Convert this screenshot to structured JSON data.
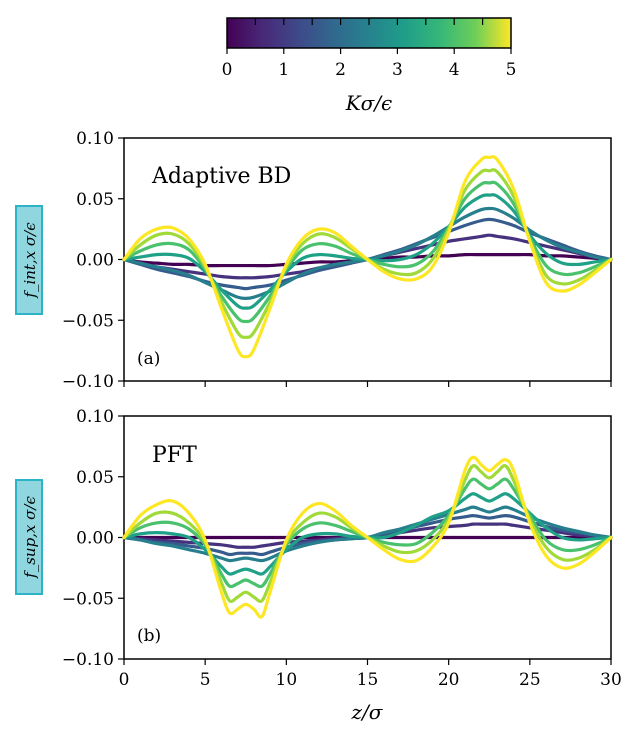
{
  "figure": {
    "colorbar": {
      "label": "Kσ/ϵ",
      "ticks": [
        "0",
        "1",
        "2",
        "3",
        "4",
        "5"
      ],
      "range": [
        0,
        5
      ],
      "colormap": "viridis"
    },
    "xlabel": "z/σ"
  },
  "chart_data": [
    {
      "type": "line",
      "panel_tag": "(a)",
      "title": "Adaptive BD",
      "ylabel": "f_int,x σ/ϵ",
      "xlim": [
        0,
        30
      ],
      "ylim": [
        -0.1,
        0.1
      ],
      "x_ticks": [
        "0",
        "5",
        "10",
        "15",
        "20",
        "25",
        "30"
      ],
      "y_ticks": [
        "−0.10",
        "−0.05",
        "0.00",
        "0.05",
        "0.10"
      ],
      "x": [
        0,
        1,
        2,
        3,
        4,
        5,
        6,
        7,
        7.5,
        8,
        9,
        10,
        11,
        12,
        13,
        14,
        15,
        16,
        17,
        18,
        19,
        20,
        21,
        22,
        22.5,
        23,
        24,
        25,
        26,
        27,
        28,
        29,
        30
      ],
      "series": [
        {
          "K": 0.5,
          "color": "#440154",
          "y": [
            0,
            -0.002,
            -0.003,
            -0.004,
            -0.004,
            -0.005,
            -0.005,
            -0.005,
            -0.005,
            -0.005,
            -0.005,
            -0.004,
            -0.003,
            -0.002,
            -0.002,
            -0.001,
            0,
            0.001,
            0.002,
            0.002,
            0.003,
            0.003,
            0.004,
            0.004,
            0.004,
            0.004,
            0.004,
            0.004,
            0.003,
            0.003,
            0.002,
            0.001,
            0
          ]
        },
        {
          "K": 1.0,
          "color": "#46327e",
          "y": [
            0,
            -0.003,
            -0.006,
            -0.008,
            -0.01,
            -0.012,
            -0.014,
            -0.015,
            -0.015,
            -0.015,
            -0.014,
            -0.012,
            -0.01,
            -0.007,
            -0.005,
            -0.002,
            0,
            0.003,
            0.006,
            0.009,
            0.012,
            0.015,
            0.017,
            0.019,
            0.02,
            0.019,
            0.017,
            0.014,
            0.011,
            0.008,
            0.005,
            0.002,
            0
          ]
        },
        {
          "K": 1.5,
          "color": "#365c8d",
          "y": [
            0,
            -0.004,
            -0.008,
            -0.011,
            -0.014,
            -0.018,
            -0.021,
            -0.023,
            -0.024,
            -0.023,
            -0.021,
            -0.017,
            -0.013,
            -0.009,
            -0.006,
            -0.003,
            0,
            0.004,
            0.008,
            0.013,
            0.018,
            0.023,
            0.028,
            0.032,
            0.033,
            0.032,
            0.028,
            0.022,
            0.017,
            0.012,
            0.007,
            0.003,
            0
          ]
        },
        {
          "K": 2.0,
          "color": "#277f8e",
          "y": [
            0,
            -0.003,
            -0.006,
            -0.009,
            -0.013,
            -0.019,
            -0.025,
            -0.031,
            -0.032,
            -0.031,
            -0.026,
            -0.019,
            -0.012,
            -0.007,
            -0.004,
            -0.002,
            0,
            0.003,
            0.007,
            0.012,
            0.019,
            0.027,
            0.035,
            0.041,
            0.042,
            0.041,
            0.034,
            0.024,
            0.016,
            0.01,
            0.006,
            0.002,
            0
          ]
        },
        {
          "K": 2.5,
          "color": "#1fa187",
          "y": [
            0,
            0.002,
            0.004,
            0.004,
            0.001,
            -0.01,
            -0.025,
            -0.038,
            -0.04,
            -0.038,
            -0.025,
            -0.01,
            0.001,
            0.004,
            0.003,
            0.001,
            0,
            -0.001,
            0.0,
            0.004,
            0.013,
            0.027,
            0.043,
            0.052,
            0.053,
            0.052,
            0.04,
            0.02,
            0.005,
            -0.003,
            -0.004,
            -0.002,
            0
          ]
        },
        {
          "K": 3.0,
          "color": "#4ac16d",
          "y": [
            0,
            0.007,
            0.012,
            0.013,
            0.008,
            -0.008,
            -0.03,
            -0.048,
            -0.051,
            -0.048,
            -0.03,
            -0.008,
            0.008,
            0.013,
            0.011,
            0.005,
            0,
            -0.004,
            -0.006,
            -0.004,
            0.006,
            0.026,
            0.05,
            0.062,
            0.063,
            0.062,
            0.046,
            0.018,
            -0.005,
            -0.012,
            -0.011,
            -0.006,
            0
          ]
        },
        {
          "K": 3.5,
          "color": "#a0da39",
          "y": [
            0,
            0.012,
            0.02,
            0.021,
            0.013,
            -0.006,
            -0.035,
            -0.06,
            -0.064,
            -0.06,
            -0.035,
            -0.006,
            0.013,
            0.021,
            0.018,
            0.009,
            0,
            -0.008,
            -0.012,
            -0.011,
            0.0,
            0.025,
            0.057,
            0.072,
            0.073,
            0.072,
            0.052,
            0.016,
            -0.013,
            -0.02,
            -0.017,
            -0.009,
            0
          ]
        },
        {
          "K": 4.0,
          "color": "#fde725",
          "y": [
            0,
            0.017,
            0.025,
            0.026,
            0.017,
            -0.004,
            -0.04,
            -0.074,
            -0.08,
            -0.074,
            -0.04,
            -0.004,
            0.017,
            0.025,
            0.022,
            0.011,
            0,
            -0.01,
            -0.016,
            -0.016,
            -0.006,
            0.022,
            0.064,
            0.082,
            0.084,
            0.082,
            0.058,
            0.015,
            -0.019,
            -0.026,
            -0.021,
            -0.011,
            0
          ]
        }
      ]
    },
    {
      "type": "line",
      "panel_tag": "(b)",
      "title": "PFT",
      "ylabel": "f_sup,x σ/ϵ",
      "xlim": [
        0,
        30
      ],
      "ylim": [
        -0.1,
        0.1
      ],
      "x_ticks": [
        "0",
        "5",
        "10",
        "15",
        "20",
        "25",
        "30"
      ],
      "y_ticks": [
        "−0.10",
        "−0.05",
        "0.00",
        "0.05",
        "0.10"
      ],
      "x": [
        0,
        1,
        2,
        3,
        4,
        5,
        6,
        6.5,
        7,
        7.5,
        8,
        8.5,
        9,
        10,
        11,
        12,
        13,
        14,
        15,
        16,
        17,
        18,
        19,
        20,
        21,
        21.5,
        22,
        22.5,
        23,
        23.5,
        24,
        25,
        26,
        27,
        28,
        29,
        30
      ],
      "series": [
        {
          "K": 0.5,
          "color": "#440154",
          "y": [
            0,
            0,
            0,
            0,
            0,
            0,
            0,
            0,
            0,
            0,
            0,
            0,
            0,
            0,
            0,
            0,
            0,
            0,
            0,
            0,
            0,
            0,
            0,
            0,
            0,
            0,
            0,
            0,
            0,
            0,
            0,
            0,
            0,
            0,
            0,
            0,
            0
          ]
        },
        {
          "K": 1.0,
          "color": "#46327e",
          "y": [
            0,
            -0.001,
            -0.002,
            -0.003,
            -0.004,
            -0.005,
            -0.006,
            -0.007,
            -0.008,
            -0.008,
            -0.008,
            -0.007,
            -0.006,
            -0.004,
            -0.003,
            -0.002,
            -0.001,
            0,
            0,
            0.002,
            0.004,
            0.006,
            0.008,
            0.009,
            0.01,
            0.011,
            0.011,
            0.011,
            0.011,
            0.011,
            0.01,
            0.008,
            0.006,
            0.004,
            0.002,
            0.001,
            0
          ]
        },
        {
          "K": 1.5,
          "color": "#365c8d",
          "y": [
            0,
            -0.002,
            -0.004,
            -0.005,
            -0.007,
            -0.009,
            -0.012,
            -0.014,
            -0.013,
            -0.013,
            -0.013,
            -0.014,
            -0.012,
            -0.008,
            -0.005,
            -0.003,
            -0.002,
            -0.001,
            0,
            0.003,
            0.006,
            0.009,
            0.012,
            0.015,
            0.017,
            0.018,
            0.017,
            0.016,
            0.017,
            0.018,
            0.017,
            0.013,
            0.009,
            0.006,
            0.004,
            0.002,
            0
          ]
        },
        {
          "K": 2.0,
          "color": "#277f8e",
          "y": [
            0,
            -0.002,
            -0.005,
            -0.007,
            -0.01,
            -0.013,
            -0.017,
            -0.019,
            -0.018,
            -0.017,
            -0.018,
            -0.019,
            -0.017,
            -0.011,
            -0.007,
            -0.004,
            -0.002,
            -0.001,
            0,
            0.004,
            0.007,
            0.011,
            0.015,
            0.019,
            0.023,
            0.025,
            0.023,
            0.021,
            0.023,
            0.025,
            0.023,
            0.017,
            0.012,
            0.008,
            0.005,
            0.002,
            0
          ]
        },
        {
          "K": 2.5,
          "color": "#1fa187",
          "y": [
            0,
            0.003,
            0.004,
            0.003,
            0.0,
            -0.01,
            -0.024,
            -0.03,
            -0.028,
            -0.026,
            -0.028,
            -0.03,
            -0.024,
            -0.01,
            0.0,
            0.003,
            0.003,
            0.001,
            0,
            0.0,
            0.004,
            0.01,
            0.017,
            0.022,
            0.032,
            0.036,
            0.033,
            0.03,
            0.033,
            0.036,
            0.032,
            0.02,
            0.008,
            0.0,
            -0.002,
            -0.001,
            0
          ]
        },
        {
          "K": 3.0,
          "color": "#4ac16d",
          "y": [
            0,
            0.008,
            0.012,
            0.012,
            0.007,
            -0.006,
            -0.03,
            -0.04,
            -0.038,
            -0.035,
            -0.038,
            -0.04,
            -0.03,
            -0.006,
            0.007,
            0.012,
            0.01,
            0.005,
            0,
            -0.004,
            -0.006,
            -0.005,
            0.004,
            0.018,
            0.04,
            0.048,
            0.044,
            0.04,
            0.044,
            0.048,
            0.04,
            0.018,
            -0.002,
            -0.01,
            -0.01,
            -0.006,
            0
          ]
        },
        {
          "K": 3.5,
          "color": "#a0da39",
          "y": [
            0,
            0.012,
            0.02,
            0.02,
            0.012,
            -0.004,
            -0.037,
            -0.052,
            -0.049,
            -0.045,
            -0.049,
            -0.052,
            -0.037,
            -0.004,
            0.012,
            0.02,
            0.017,
            0.008,
            0,
            -0.007,
            -0.012,
            -0.011,
            -0.002,
            0.015,
            0.047,
            0.059,
            0.054,
            0.049,
            0.054,
            0.059,
            0.047,
            0.015,
            -0.008,
            -0.018,
            -0.017,
            -0.01,
            0
          ]
        },
        {
          "K": 4.0,
          "color": "#fde725",
          "y": [
            0,
            0.018,
            0.027,
            0.03,
            0.02,
            -0.002,
            -0.045,
            -0.062,
            -0.059,
            -0.055,
            -0.059,
            -0.065,
            -0.045,
            -0.002,
            0.02,
            0.028,
            0.022,
            0.01,
            0,
            -0.01,
            -0.018,
            -0.019,
            -0.008,
            0.012,
            0.055,
            0.066,
            0.06,
            0.055,
            0.06,
            0.064,
            0.055,
            0.012,
            -0.015,
            -0.025,
            -0.022,
            -0.012,
            0
          ]
        }
      ]
    }
  ]
}
